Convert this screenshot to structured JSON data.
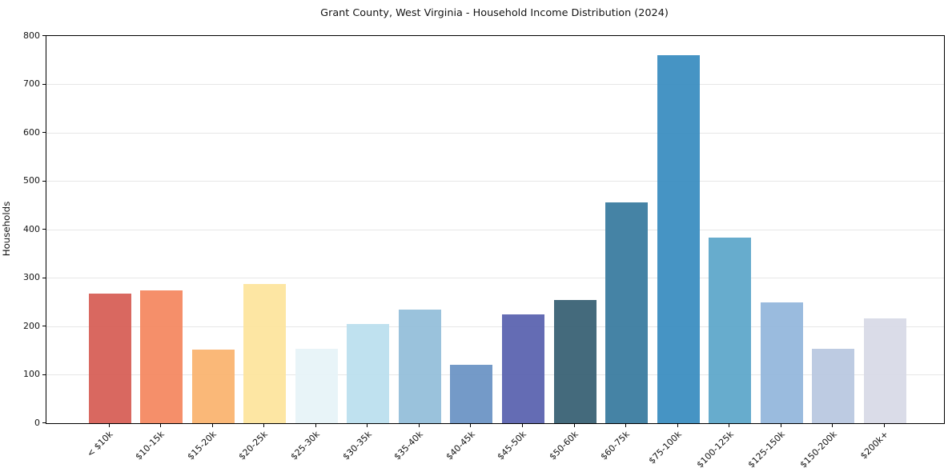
{
  "chart_data": {
    "type": "bar",
    "title": "Grant County, West Virginia - Household Income Distribution (2024)",
    "xlabel": "",
    "ylabel": "Households",
    "ylim": [
      0,
      800
    ],
    "ytick_step": 100,
    "grid": "horizontal",
    "legend": "none",
    "categories": [
      "< $10k",
      "$10-15k",
      "$15-20k",
      "$20-25k",
      "$25-30k",
      "$30-35k",
      "$35-40k",
      "$40-45k",
      "$45-50k",
      "$50-60k",
      "$60-75k",
      "$75-100k",
      "$100-125k",
      "$125-150k",
      "$150-200k",
      "$200k+"
    ],
    "values": [
      268,
      275,
      152,
      288,
      154,
      205,
      235,
      120,
      225,
      254,
      456,
      761,
      383,
      250,
      153,
      216
    ],
    "bar_colors": [
      "#d65d54",
      "#f4865f",
      "#fab36e",
      "#fde49c",
      "#e6f3f8",
      "#badfee",
      "#92bdd9",
      "#6992c4",
      "#5861ae",
      "#365f72",
      "#377a9e",
      "#388cc0",
      "#5ba6c9",
      "#92b6db",
      "#b8c7e0",
      "#d7d9e6"
    ],
    "colors": {
      "background": "#ffffff",
      "text": "#141414",
      "grid": "#e7e7e7",
      "spine": "#000000"
    }
  }
}
